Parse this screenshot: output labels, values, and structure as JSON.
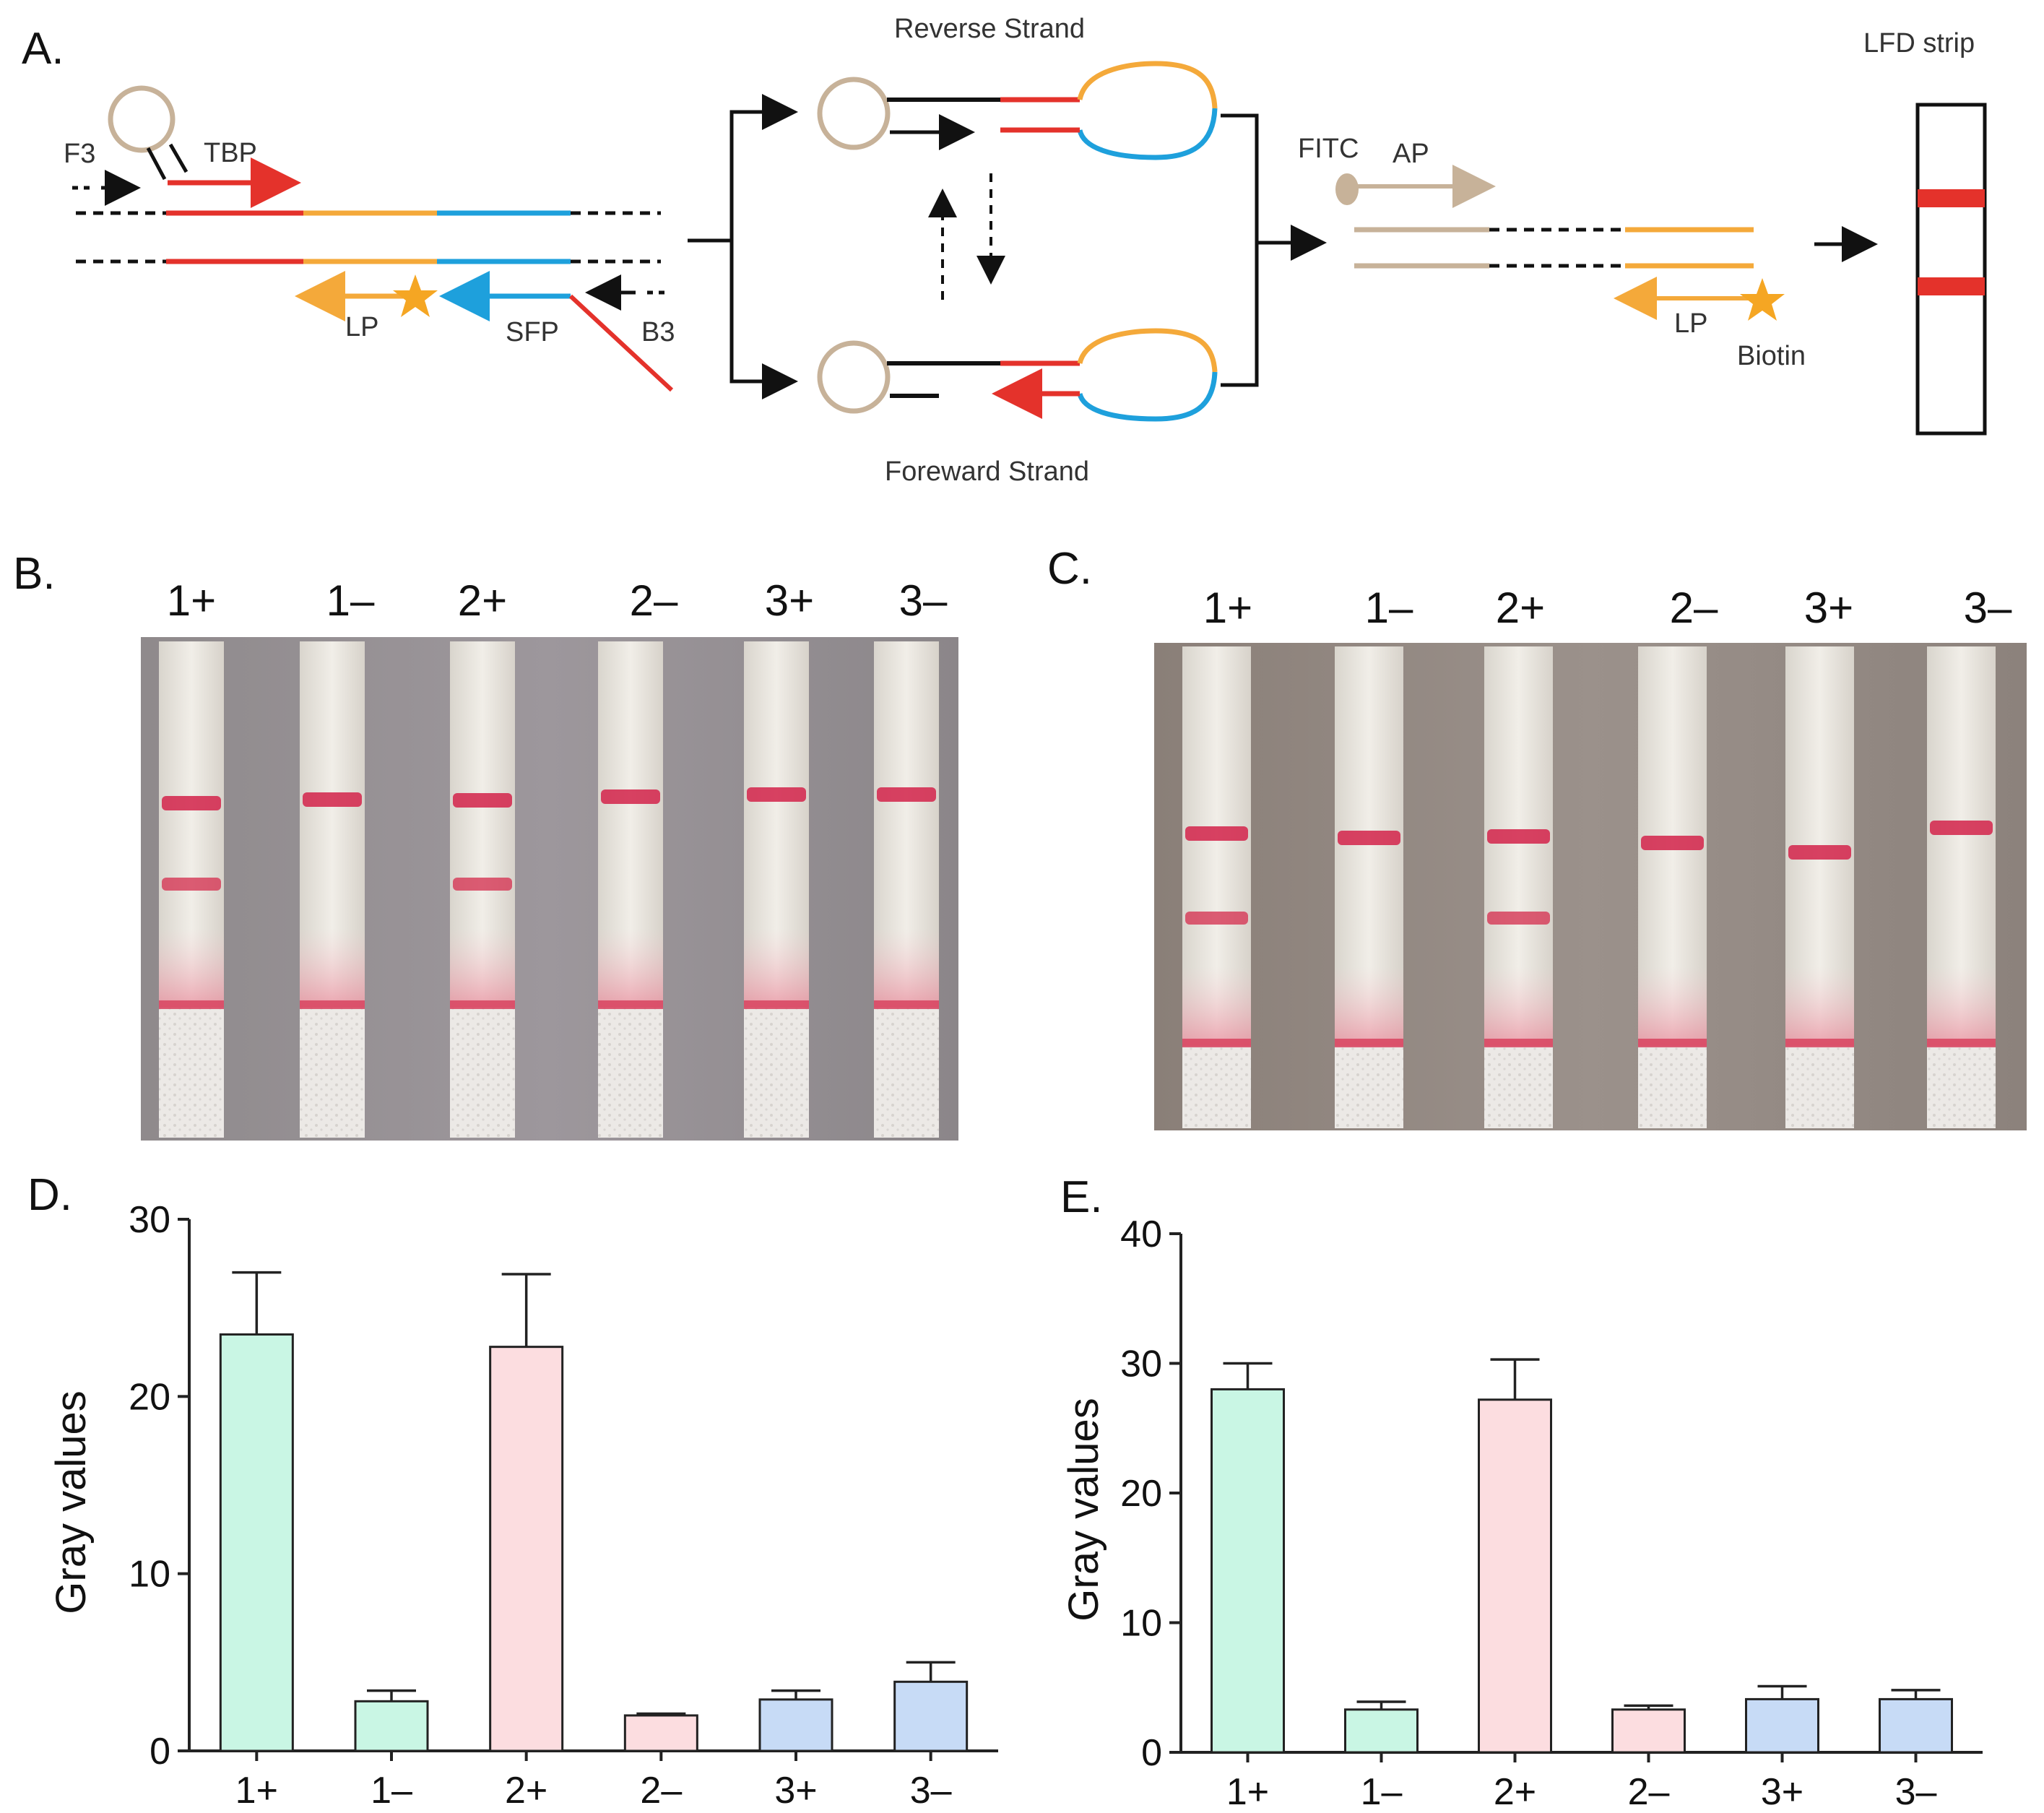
{
  "panels": {
    "a": "A.",
    "b": "B.",
    "c": "C.",
    "d": "D.",
    "e": "E."
  },
  "diagram": {
    "f3": "F3",
    "tbp": "TBP",
    "lp": "LP",
    "sfp": "SFP",
    "b3": "B3",
    "reverse_strand": "Reverse Strand",
    "forward_strand": "Foreward Strand",
    "fitc": "FITC",
    "ap": "AP",
    "lp2": "LP",
    "biotin": "Biotin",
    "lfd_strip": "LFD strip"
  },
  "colors": {
    "red": "#e4322b",
    "orange": "#f4a93a",
    "blue": "#1ea0dc",
    "tan": "#c7b299",
    "star": "#f5a623",
    "green_bar": "#c9f6e4",
    "pink_bar": "#fcdde0",
    "blue_bar": "#c7dbf6"
  },
  "photo_b": {
    "lanes": [
      "1+",
      "1–",
      "2+",
      "2–",
      "3+",
      "3–"
    ],
    "strips": [
      {
        "control": true,
        "test": true
      },
      {
        "control": true,
        "test": false
      },
      {
        "control": true,
        "test": true
      },
      {
        "control": true,
        "test": false
      },
      {
        "control": true,
        "test": false
      },
      {
        "control": true,
        "test": false
      }
    ]
  },
  "photo_c": {
    "lanes": [
      "1+",
      "1–",
      "2+",
      "2–",
      "3+",
      "3–"
    ],
    "strips": [
      {
        "control": true,
        "test": true
      },
      {
        "control": true,
        "test": false
      },
      {
        "control": true,
        "test": true
      },
      {
        "control": true,
        "test": false
      },
      {
        "control": true,
        "test": false
      },
      {
        "control": true,
        "test": false
      }
    ]
  },
  "chart_data": [
    {
      "type": "bar",
      "panel": "D.",
      "title": "",
      "xlabel": "",
      "ylabel": "Gray values",
      "ylim": [
        0,
        30
      ],
      "yticks": [
        "0",
        "10",
        "20",
        "30"
      ],
      "categories": [
        "1+",
        "1–",
        "2+",
        "2–",
        "3+",
        "3–"
      ],
      "values": [
        23.5,
        2.8,
        22.8,
        2.0,
        2.9,
        3.9
      ],
      "errors": [
        3.5,
        0.6,
        4.1,
        0.1,
        0.5,
        1.1
      ],
      "colors": [
        "#c9f6e4",
        "#c9f6e4",
        "#fcdde0",
        "#fcdde0",
        "#c7dbf6",
        "#c7dbf6"
      ]
    },
    {
      "type": "bar",
      "panel": "E.",
      "title": "",
      "xlabel": "",
      "ylabel": "Gray values",
      "ylim": [
        0,
        40
      ],
      "yticks": [
        "0",
        "10",
        "20",
        "30",
        "40"
      ],
      "categories": [
        "1+",
        "1–",
        "2+",
        "2–",
        "3+",
        "3–"
      ],
      "values": [
        28.0,
        3.3,
        27.2,
        3.3,
        4.1,
        4.1
      ],
      "errors": [
        2.0,
        0.6,
        3.1,
        0.3,
        1.0,
        0.7
      ],
      "colors": [
        "#c9f6e4",
        "#c9f6e4",
        "#fcdde0",
        "#fcdde0",
        "#c7dbf6",
        "#c7dbf6"
      ]
    }
  ]
}
